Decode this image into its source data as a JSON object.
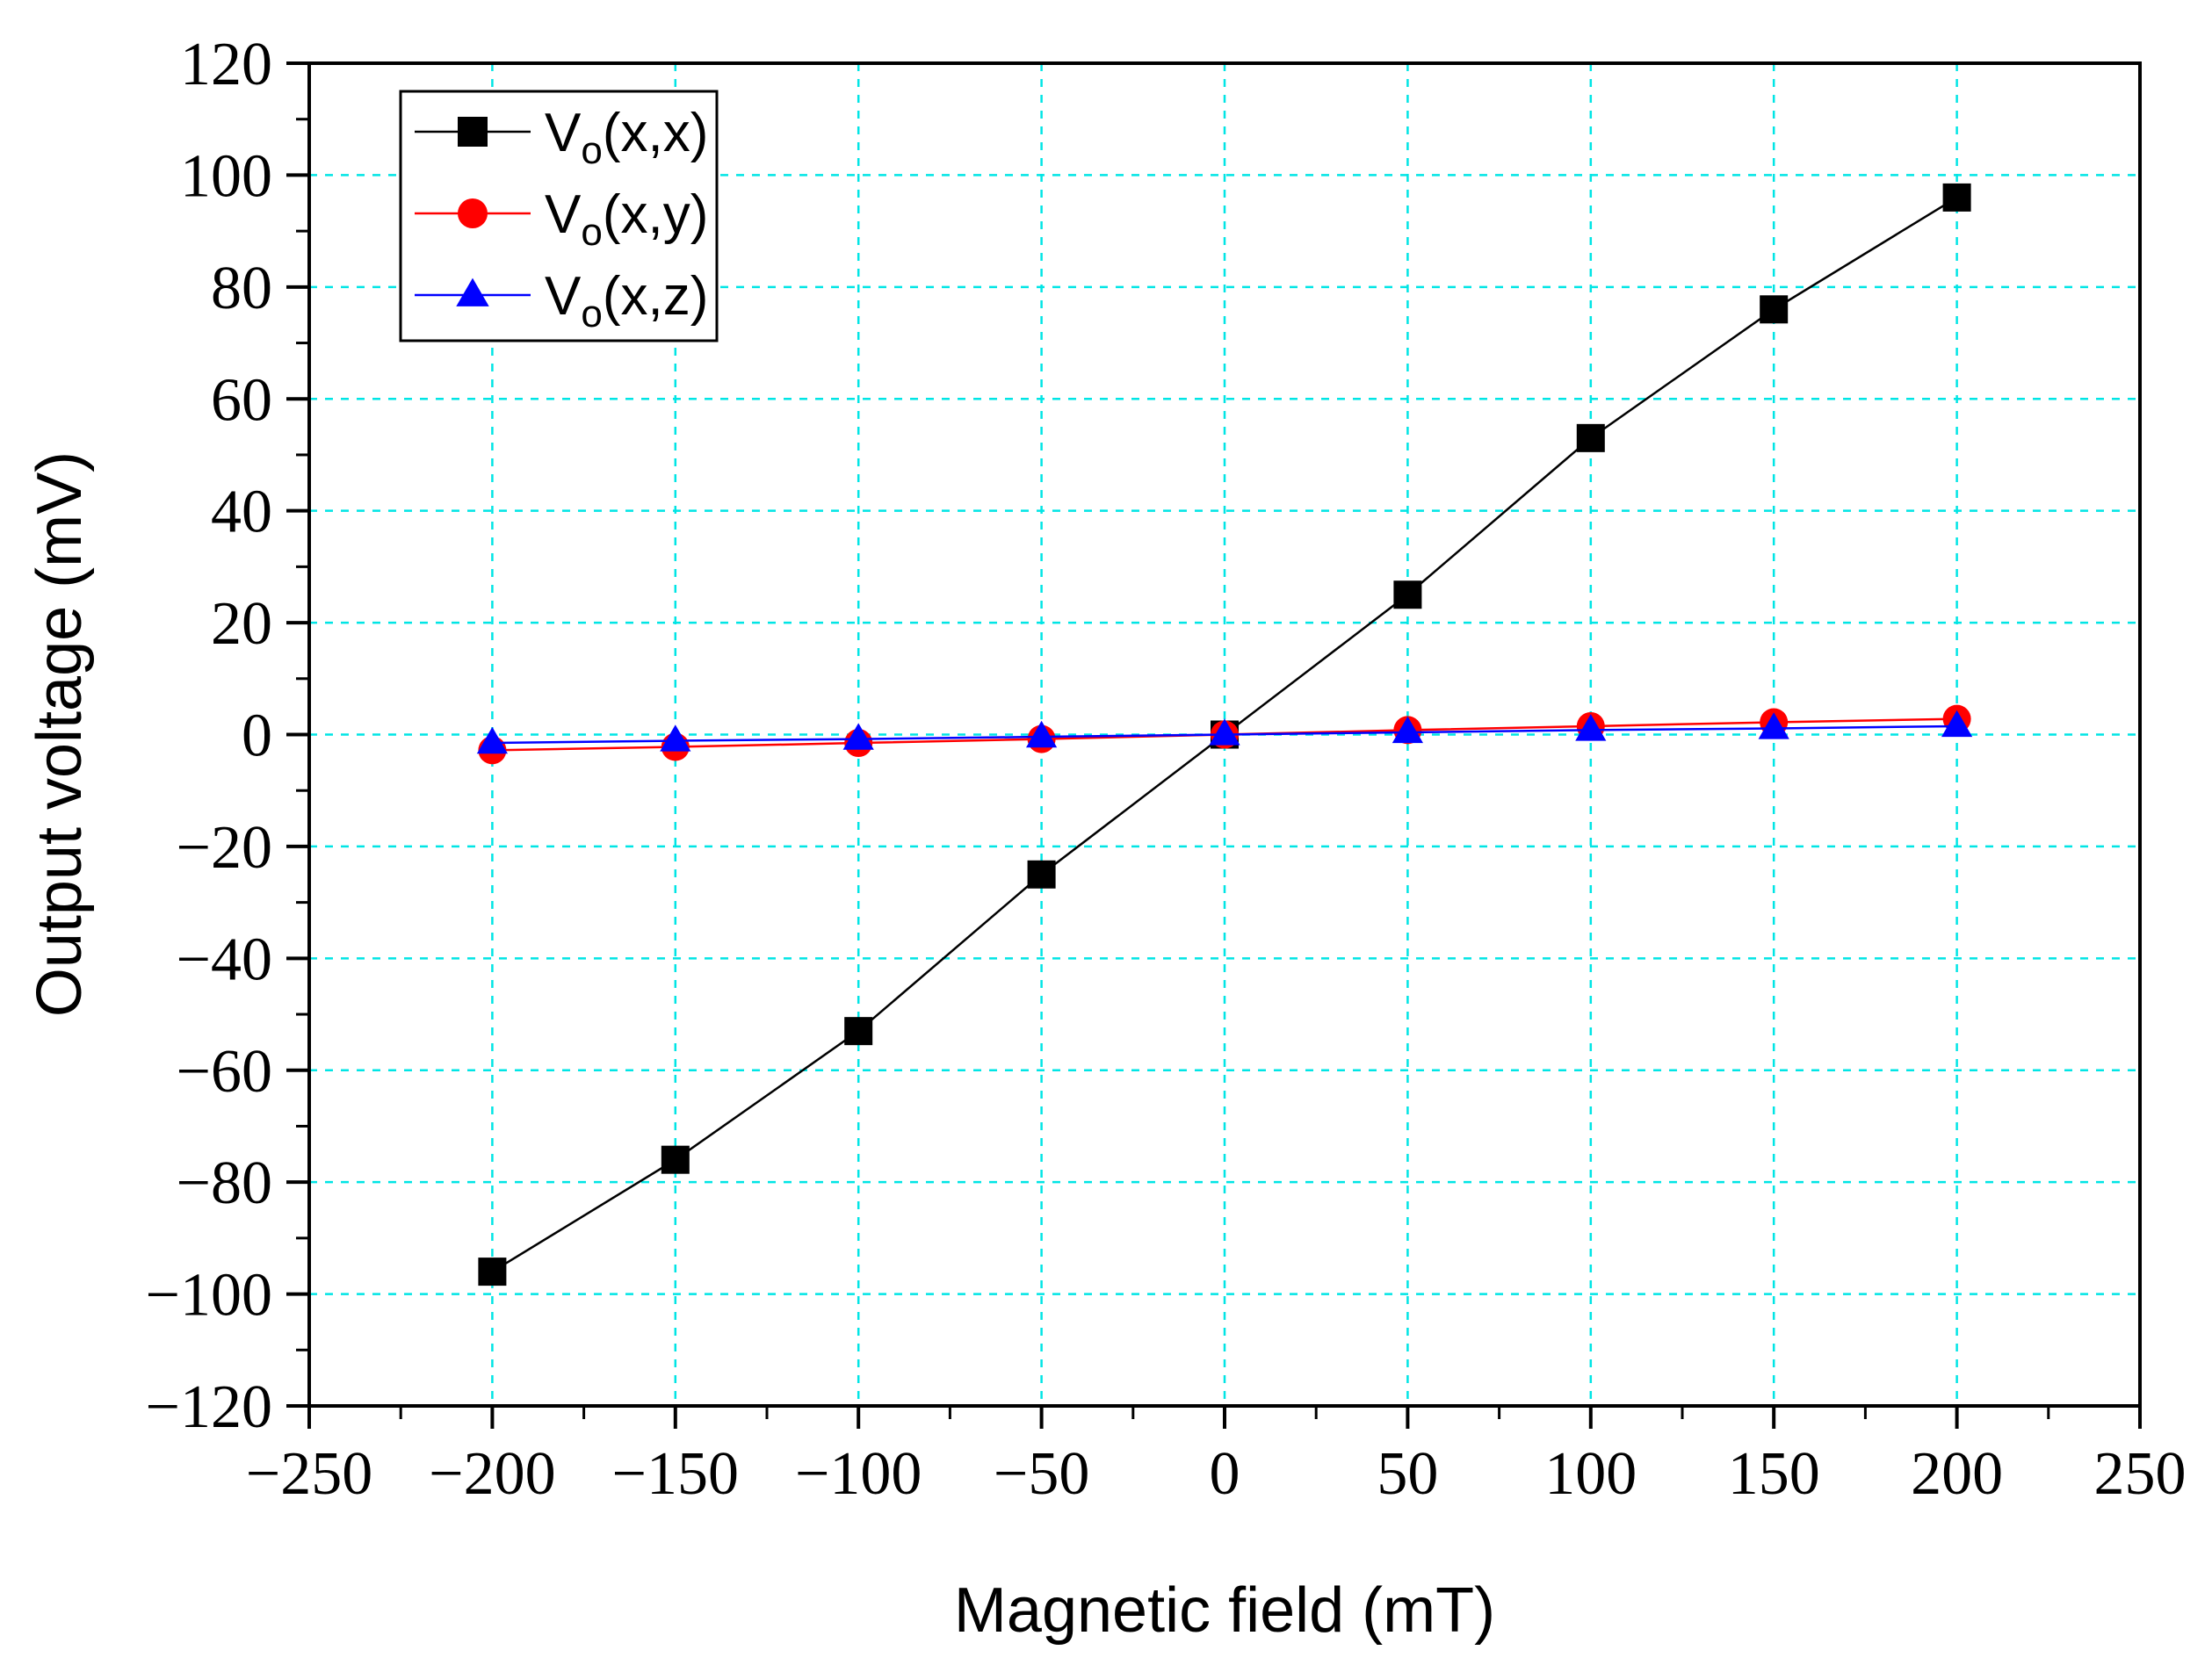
{
  "chart_data": {
    "type": "line",
    "title": "",
    "xlabel": "Magnetic field (mT)",
    "ylabel": "Output voltage (mV)",
    "xlim": [
      -250,
      250
    ],
    "ylim": [
      -120,
      120
    ],
    "xticks": [
      -250,
      -200,
      -150,
      -100,
      -50,
      0,
      50,
      100,
      150,
      200,
      250
    ],
    "yticks": [
      -120,
      -100,
      -80,
      -60,
      -40,
      -20,
      0,
      20,
      40,
      60,
      80,
      100,
      120
    ],
    "xtick_labels": [
      "−250",
      "−200",
      "−150",
      "−100",
      "−50",
      "0",
      "50",
      "100",
      "150",
      "200",
      "250"
    ],
    "ytick_labels": [
      "−120",
      "−100",
      "−80",
      "−60",
      "−40",
      "−20",
      "0",
      "20",
      "40",
      "60",
      "80",
      "100",
      "120"
    ],
    "grid": true,
    "grid_color": "#00e5e5",
    "legend_position": "top-left",
    "x": [
      -200,
      -150,
      -100,
      -50,
      0,
      50,
      100,
      150,
      200
    ],
    "series": [
      {
        "name": "Vo(x,x)",
        "label_main": "V",
        "label_sub": "o",
        "label_rest": "(x,x)",
        "color": "#000000",
        "marker": "square",
        "values": [
          -96,
          -76,
          -53,
          -25,
          0,
          25,
          53,
          76,
          96
        ]
      },
      {
        "name": "Vo(x,y)",
        "label_main": "V",
        "label_sub": "o",
        "label_rest": "(x,y)",
        "color": "#ff0000",
        "marker": "circle",
        "values": [
          -2.8,
          -2.2,
          -1.5,
          -0.8,
          0,
          0.8,
          1.5,
          2.2,
          2.8
        ]
      },
      {
        "name": "Vo(x,z)",
        "label_main": "V",
        "label_sub": "o",
        "label_rest": "(x,z)",
        "color": "#0000ff",
        "marker": "triangle",
        "values": [
          -1.5,
          -1.1,
          -0.8,
          -0.4,
          0,
          0.4,
          0.8,
          1.1,
          1.5
        ]
      }
    ]
  }
}
